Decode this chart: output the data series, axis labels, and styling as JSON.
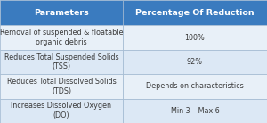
{
  "header": [
    "Parameters",
    "Percentage Of Reduction"
  ],
  "rows": [
    [
      "Removal of suspended & floatable\norganic debris",
      "100%"
    ],
    [
      "Reduces Total Suspended Solids\n(TSS)",
      "92%"
    ],
    [
      "Reduces Total Dissolved Solids\n(TDS)",
      "Depends on characteristics"
    ],
    [
      "Increases Dissolved Oxygen\n(DO)",
      "Min 3 – Max 6"
    ]
  ],
  "header_bg": "#3a7bbf",
  "header_text_color": "#ffffff",
  "row_bg_light": "#dce8f5",
  "row_bg_lighter": "#e8f0f8",
  "row_text_color": "#3a3a3a",
  "border_color": "#a0b8d0",
  "col_split": 0.46,
  "header_fontsize": 6.8,
  "row_fontsize": 5.8,
  "fig_width": 3.0,
  "fig_height": 1.38,
  "dpi": 100
}
